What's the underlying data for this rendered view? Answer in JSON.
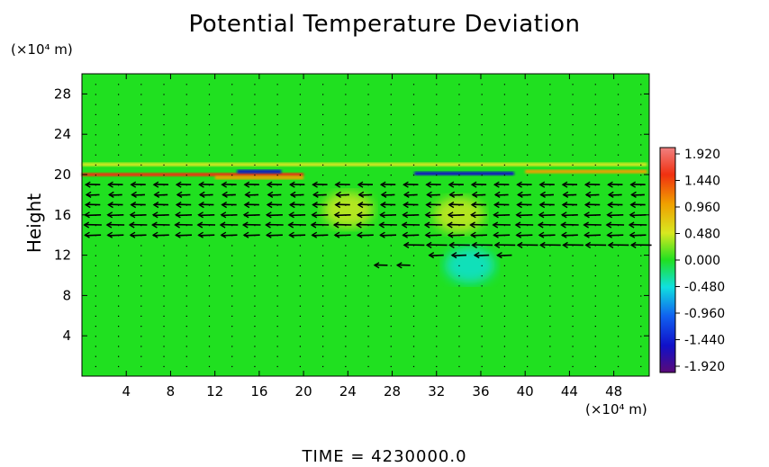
{
  "title": "Potential Temperature Deviation",
  "y_unit": "(×10⁴ m)",
  "x_unit": "(×10⁴ m)",
  "footer": "TIME  =  4230000.0",
  "chart_data": {
    "type": "heatmap",
    "title": "Potential Temperature Deviation",
    "ylabel": "Height",
    "xlabel": "",
    "x_ticks": [
      4,
      8,
      12,
      16,
      20,
      24,
      28,
      32,
      36,
      40,
      44,
      48
    ],
    "y_ticks": [
      4,
      8,
      12,
      16,
      20,
      24,
      28
    ],
    "xlim": [
      0,
      51.2
    ],
    "ylim": [
      0,
      30
    ],
    "colorbar": {
      "ticks": [
        "1.920",
        "1.440",
        "0.960",
        "0.480",
        "0.000",
        "-0.480",
        "-0.960",
        "-1.440",
        "-1.920"
      ],
      "range": [
        -1.92,
        1.92
      ]
    },
    "background_value": 0.0,
    "features": [
      {
        "type": "band",
        "y": 20.0,
        "x_range": [
          0,
          20
        ],
        "value": 1.4
      },
      {
        "type": "band",
        "y": 19.7,
        "x_range": [
          12,
          20
        ],
        "value": 0.9
      },
      {
        "type": "band",
        "y": 20.3,
        "x_range": [
          14,
          18
        ],
        "value": -1.5
      },
      {
        "type": "band",
        "y": 20.1,
        "x_range": [
          30,
          39
        ],
        "value": -1.3
      },
      {
        "type": "band",
        "y": 20.3,
        "x_range": [
          40,
          51
        ],
        "value": 1.2
      },
      {
        "type": "band",
        "y": 21.0,
        "x_range": [
          0,
          51
        ],
        "value": 0.4
      },
      {
        "type": "blob",
        "x": 34,
        "y": 16,
        "value": 0.6
      },
      {
        "type": "blob",
        "x": 24,
        "y": 16.5,
        "value": 0.5
      },
      {
        "type": "blob",
        "x": 35,
        "y": 11,
        "value": -0.3
      }
    ],
    "vectors": [
      {
        "y": 19.0,
        "u": -1.0,
        "x_range": [
          1,
          51
        ]
      },
      {
        "y": 18.0,
        "u": -0.9,
        "x_range": [
          1,
          51
        ]
      },
      {
        "y": 17.0,
        "u": -1.0,
        "x_range": [
          1,
          51
        ]
      },
      {
        "y": 16.0,
        "u": -1.1,
        "x_range": [
          1,
          51
        ]
      },
      {
        "y": 15.0,
        "u": -1.2,
        "x_range": [
          1,
          51
        ]
      },
      {
        "y": 14.0,
        "u": -1.1,
        "x_range": [
          1,
          51
        ]
      },
      {
        "y": 13.0,
        "u": -1.4,
        "x_range": [
          30,
          51
        ]
      },
      {
        "y": 12.0,
        "u": -1.0,
        "x_range": [
          32,
          40
        ]
      },
      {
        "y": 11.0,
        "u": -0.9,
        "x_range": [
          27,
          31
        ]
      }
    ]
  }
}
